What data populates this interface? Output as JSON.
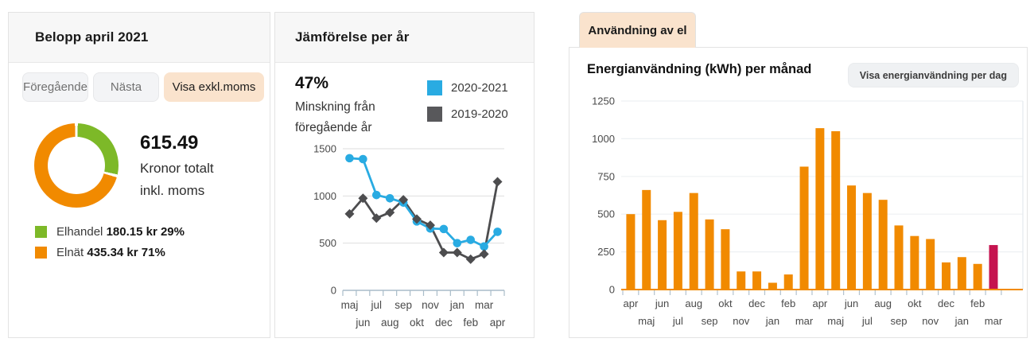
{
  "colors": {
    "accent_peach": "#FAE3CD",
    "donut_green": "#7DB928",
    "donut_orange": "#F18A00",
    "line_blue": "#29ABE2",
    "line_gray": "#58585B",
    "bar_orange": "#F18A00",
    "bar_highlight": "#C5134F"
  },
  "belopp": {
    "title": "Belopp april 2021",
    "buttons": {
      "previous": "Föregående",
      "next": "Nästa",
      "toggle_vat": "Visa exkl.moms"
    },
    "total_amount": "615.49",
    "total_caption1": "Kronor totalt",
    "total_caption2": "inkl. moms",
    "legend": [
      {
        "label": "Elhandel",
        "value": "180.15 kr 29%",
        "color": "#7DB928"
      },
      {
        "label": "Elnät",
        "value": "435.34 kr 71%",
        "color": "#F18A00"
      }
    ]
  },
  "jamforelse": {
    "title": "Jämförelse per år",
    "highlight": "47%",
    "caption1": "Minskning från",
    "caption2": "föregående år",
    "legend": [
      {
        "label": "2020-2021",
        "color": "#29ABE2"
      },
      {
        "label": "2019-2020",
        "color": "#58585B"
      }
    ]
  },
  "anvandning": {
    "tab": "Användning av el",
    "title": "Energianvändning (kWh) per månad",
    "day_button": "Visa energianvändning per dag"
  },
  "chart_data": [
    {
      "type": "pie",
      "variant": "donut",
      "title": "Belopp april 2021",
      "labels": [
        "Elhandel",
        "Elnät"
      ],
      "values": [
        29,
        71
      ],
      "colors": [
        "#7DB928",
        "#F18A00"
      ],
      "total_kr": 615.49,
      "total_caption": "Kronor totalt inkl. moms"
    },
    {
      "type": "line",
      "title": "Jämförelse per år",
      "categories": [
        "maj",
        "jun",
        "jul",
        "aug",
        "sep",
        "okt",
        "nov",
        "dec",
        "jan",
        "feb",
        "mar",
        "apr"
      ],
      "series": [
        {
          "name": "2020-2021",
          "color": "#29ABE2",
          "marker": "circle",
          "values": [
            1400,
            1390,
            1010,
            975,
            930,
            730,
            655,
            650,
            500,
            535,
            465,
            620
          ]
        },
        {
          "name": "2019-2020",
          "color": "#4D4D4F",
          "marker": "diamond",
          "values": [
            810,
            975,
            765,
            825,
            960,
            755,
            690,
            400,
            400,
            330,
            385,
            1150
          ]
        }
      ],
      "ylim": [
        0,
        1500
      ],
      "yticks": [
        0,
        500,
        1000,
        1500
      ],
      "grid": true,
      "legend_position": "top-right"
    },
    {
      "type": "bar",
      "title": "Energianvändning (kWh) per månad",
      "ylabel": "kWh",
      "categories": [
        "apr",
        "maj",
        "jun",
        "jul",
        "aug",
        "sep",
        "okt",
        "nov",
        "dec",
        "jan",
        "feb",
        "mar",
        "apr",
        "maj",
        "jun",
        "jul",
        "aug",
        "sep",
        "okt",
        "nov",
        "dec",
        "jan",
        "feb",
        "mar"
      ],
      "values": [
        500,
        660,
        460,
        515,
        640,
        465,
        400,
        120,
        120,
        45,
        100,
        815,
        1070,
        1050,
        690,
        640,
        595,
        425,
        355,
        335,
        180,
        215,
        170,
        295
      ],
      "bar_colors": {
        "default": "#F18A00",
        "highlight": "#C5134F"
      },
      "highlight_index": 23,
      "ylim": [
        0,
        1250
      ],
      "yticks": [
        0,
        250,
        500,
        750,
        1000,
        1250
      ],
      "grid": true
    }
  ]
}
